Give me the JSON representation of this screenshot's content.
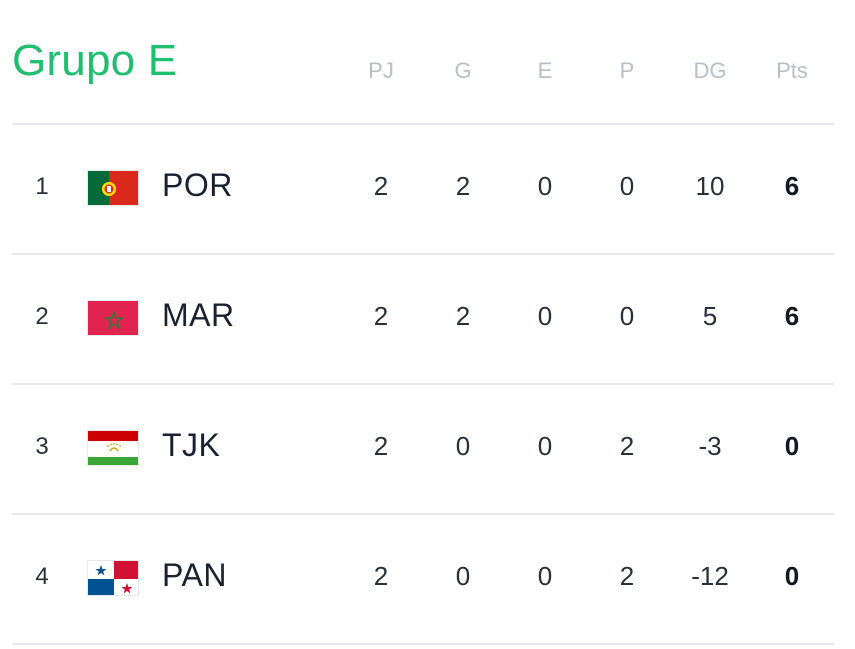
{
  "group": {
    "title": "Grupo E"
  },
  "columns": {
    "pj": "PJ",
    "g": "G",
    "e": "E",
    "p": "P",
    "dg": "DG",
    "pts": "Pts"
  },
  "rows": [
    {
      "pos": "1",
      "team": "POR",
      "flag": "portugal-flag",
      "pj": "2",
      "g": "2",
      "e": "0",
      "p": "0",
      "dg": "10",
      "pts": "6"
    },
    {
      "pos": "2",
      "team": "MAR",
      "flag": "morocco-flag",
      "pj": "2",
      "g": "2",
      "e": "0",
      "p": "0",
      "dg": "5",
      "pts": "6"
    },
    {
      "pos": "3",
      "team": "TJK",
      "flag": "tajikistan-flag",
      "pj": "2",
      "g": "0",
      "e": "0",
      "p": "2",
      "dg": "-3",
      "pts": "0"
    },
    {
      "pos": "4",
      "team": "PAN",
      "flag": "panama-flag",
      "pj": "2",
      "g": "0",
      "e": "0",
      "p": "2",
      "dg": "-12",
      "pts": "0"
    }
  ],
  "colors": {
    "title": "#1fbf6f",
    "header_text": "#b9bec7",
    "divider": "#e6e8ec"
  }
}
